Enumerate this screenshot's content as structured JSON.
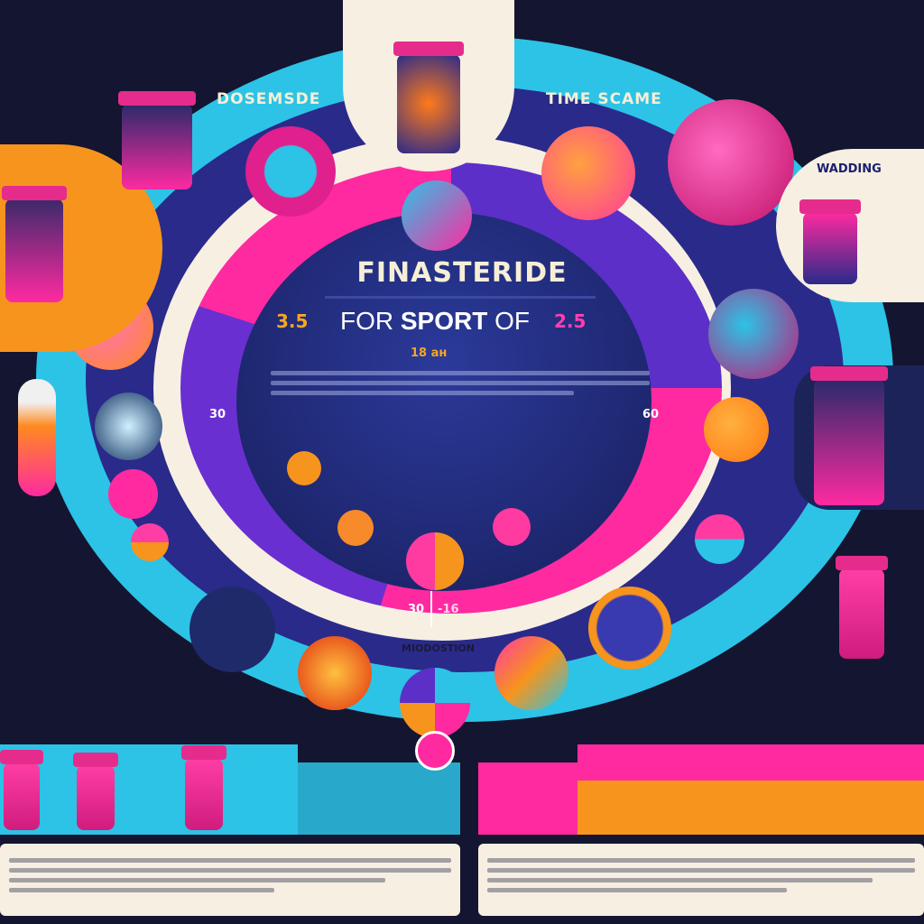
{
  "header": {
    "left_label": "DOSEMSDE",
    "right_label": "TIME SCAME",
    "warning_label": "WADDING"
  },
  "center": {
    "title": "FINASTERIDE",
    "subtitle_prefix": "FOR ",
    "subtitle_bold": "SPORT",
    "subtitle_suffix": " OF",
    "left_value": "3.5",
    "right_value": "2.5",
    "mid_value": "18 ан"
  },
  "ring": {
    "left_number": "30",
    "right_number": "60",
    "bottom_left": "30",
    "bottom_right": "-16",
    "bottom_label": "MIODOSTION"
  },
  "colors": {
    "pink": "#ff2aa0",
    "cyan": "#2cc3e6",
    "purple": "#5b2fc8",
    "orange": "#f7941d",
    "navy": "#141530",
    "cream": "#f6efe2"
  }
}
